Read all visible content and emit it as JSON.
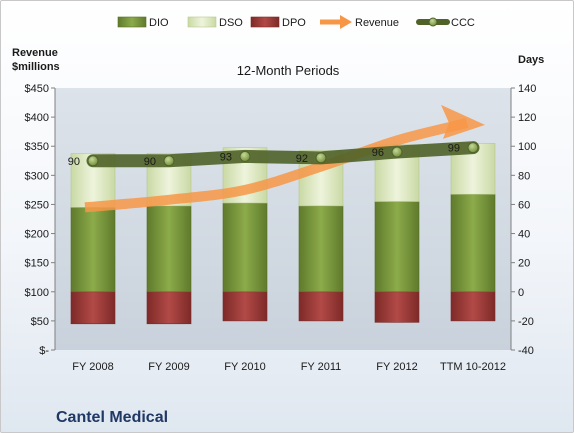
{
  "chart_data": {
    "type": "bar",
    "title": "Cantel Medical",
    "subtitle": "12-Month Periods",
    "left_axis_title": [
      "Revenue",
      "$millions"
    ],
    "right_axis_title": "Days",
    "categories": [
      "FY 2008",
      "FY 2009",
      "FY 2010",
      "FY 2011",
      "FY 2012",
      "TTM 10-2012"
    ],
    "left_ylim": [
      0,
      450
    ],
    "left_ticks": [
      0,
      50,
      100,
      150,
      200,
      250,
      300,
      350,
      400,
      450
    ],
    "left_tick_labels": [
      "$-",
      "$50",
      "$100",
      "$150",
      "$200",
      "$250",
      "$300",
      "$350",
      "$400",
      "$450"
    ],
    "right_ylim": [
      -40,
      140
    ],
    "right_ticks": [
      -40,
      -20,
      0,
      20,
      40,
      60,
      80,
      100,
      120,
      140
    ],
    "right_tick_labels": [
      "-40",
      "-20",
      "0",
      "20",
      "40",
      "60",
      "80",
      "100",
      "120",
      "140"
    ],
    "legend": [
      "DIO",
      "DSO",
      "DPO",
      "Revenue",
      "CCC"
    ],
    "legend_position": "top",
    "series": [
      {
        "name": "DIO",
        "axis": "right",
        "stack": "days",
        "values": [
          58,
          59,
          61,
          59,
          62,
          67
        ],
        "color": "#77933c"
      },
      {
        "name": "DSO",
        "axis": "right",
        "stack": "days",
        "values": [
          37,
          36,
          38,
          38,
          39,
          35
        ],
        "color": "#d7e4bd"
      },
      {
        "name": "DPO",
        "axis": "right",
        "stack": "days",
        "values": [
          -22,
          -22,
          -20,
          -20,
          -21,
          -20
        ],
        "color": "#943634"
      },
      {
        "name": "Revenue",
        "axis": "left",
        "type": "arrow",
        "values": [
          245,
          258,
          275,
          315,
          360,
          390
        ],
        "color": "#f79646"
      },
      {
        "name": "CCC",
        "axis": "right",
        "type": "line",
        "values": [
          90,
          90,
          93,
          92,
          96,
          99
        ],
        "labels": [
          "90",
          "90",
          "93",
          "92",
          "96",
          "99"
        ],
        "color": "#4f6228"
      }
    ],
    "grid": false
  }
}
